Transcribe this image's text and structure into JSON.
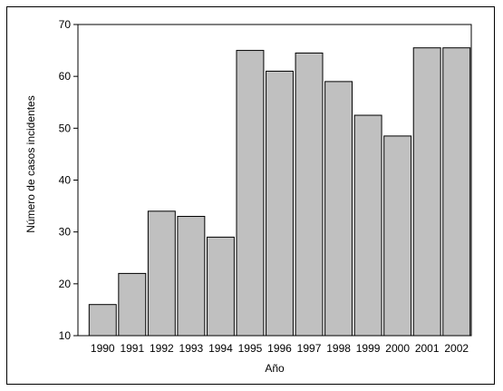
{
  "chart_data": {
    "type": "bar",
    "xlabel": "Año",
    "ylabel": "Número de casos incidentes",
    "ylim": [
      10,
      70
    ],
    "yticks": [
      10,
      20,
      30,
      40,
      50,
      60,
      70
    ],
    "categories": [
      "1990",
      "1991",
      "1992",
      "1993",
      "1994",
      "1995",
      "1996",
      "1997",
      "1998",
      "1999",
      "2000",
      "2001",
      "2002"
    ],
    "values": [
      16,
      22,
      34,
      33,
      29,
      65,
      61,
      64.5,
      59,
      52.5,
      48.5,
      65.5,
      65.5
    ],
    "bar_color": "#c0c0c0",
    "grid": false,
    "legend": "none"
  }
}
